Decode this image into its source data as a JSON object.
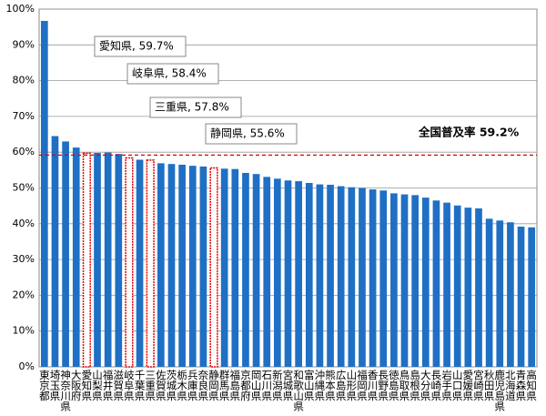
{
  "chart_data": {
    "type": "bar",
    "categories": [
      "東京都",
      "埼玉県",
      "神奈川県",
      "大阪府",
      "愛知県",
      "山梨県",
      "福井県",
      "滋賀県",
      "岐阜県",
      "千葉県",
      "三重県",
      "佐賀県",
      "茨城県",
      "栃木県",
      "兵庫県",
      "奈良県",
      "静岡県",
      "群馬県",
      "福島県",
      "京都府",
      "岡山県",
      "石川県",
      "新潟県",
      "宮城県",
      "和歌山県",
      "富山県",
      "沖縄県",
      "熊本県",
      "広島県",
      "山形県",
      "福岡県",
      "香川県",
      "長野県",
      "徳島県",
      "鳥取県",
      "島根県",
      "大分県",
      "長崎県",
      "岩手県",
      "山口県",
      "愛媛県",
      "宮崎県",
      "秋田県",
      "鹿児島県",
      "北海道",
      "青森県",
      "高知県"
    ],
    "values": [
      96.7,
      64.5,
      63.0,
      61.3,
      59.7,
      59.8,
      59.9,
      59.5,
      58.4,
      57.9,
      57.8,
      56.9,
      56.7,
      56.5,
      56.2,
      56.0,
      55.6,
      55.4,
      55.3,
      54.2,
      53.9,
      53.1,
      52.6,
      52.1,
      51.9,
      51.4,
      51.0,
      50.9,
      50.5,
      50.2,
      50.0,
      49.6,
      49.3,
      48.5,
      48.2,
      48.0,
      47.3,
      46.5,
      45.9,
      45.1,
      44.5,
      44.3,
      41.4,
      40.9,
      40.4,
      39.2,
      39.0
    ],
    "color": "#1f6fc5",
    "colors": [
      "#1f6fc5",
      "#1f6fc5",
      "#1f6fc5",
      "#1f6fc5",
      "#e00000",
      "#1f6fc5",
      "#1f6fc5",
      "#1f6fc5",
      "#e00000",
      "#1f6fc5",
      "#e00000",
      "#1f6fc5",
      "#1f6fc5",
      "#1f6fc5",
      "#1f6fc5",
      "#1f6fc5",
      "#e00000",
      "#1f6fc5",
      "#1f6fc5",
      "#1f6fc5",
      "#1f6fc5",
      "#1f6fc5",
      "#1f6fc5",
      "#1f6fc5",
      "#1f6fc5",
      "#1f6fc5",
      "#1f6fc5",
      "#1f6fc5",
      "#1f6fc5",
      "#1f6fc5",
      "#1f6fc5",
      "#1f6fc5",
      "#1f6fc5",
      "#1f6fc5",
      "#1f6fc5",
      "#1f6fc5",
      "#1f6fc5",
      "#1f6fc5",
      "#1f6fc5",
      "#1f6fc5",
      "#1f6fc5",
      "#1f6fc5",
      "#1f6fc5",
      "#1f6fc5",
      "#1f6fc5",
      "#1f6fc5",
      "#1f6fc5"
    ],
    "ylim": [
      0,
      100
    ],
    "yticks": [
      {
        "value": 0,
        "label": "0%"
      },
      {
        "value": 10,
        "label": "10%"
      },
      {
        "value": 20,
        "label": "20%"
      },
      {
        "value": 30,
        "label": "30%"
      },
      {
        "value": 40,
        "label": "40%"
      },
      {
        "value": 50,
        "label": "50%"
      },
      {
        "value": 60,
        "label": "60%"
      },
      {
        "value": 70,
        "label": "70%"
      },
      {
        "value": 80,
        "label": "80%"
      },
      {
        "value": 90,
        "label": "90%"
      },
      {
        "value": 100,
        "label": "100%"
      }
    ],
    "grid": true,
    "reference": {
      "value": 59.2,
      "label": "全国普及率 59.2%",
      "color": "#e00000"
    },
    "annotations": [
      "愛知県, 59.7%",
      "岐阜県, 58.4%",
      "三重県, 57.8%",
      "静岡県, 55.6%"
    ]
  }
}
